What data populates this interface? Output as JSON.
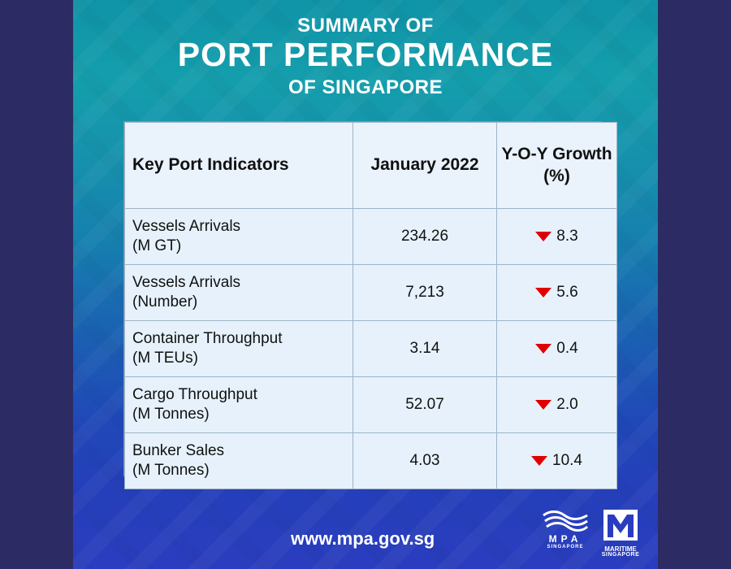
{
  "header": {
    "title_top": "SUMMARY OF",
    "title_main": "PORT PERFORMANCE",
    "title_bottom": "OF SINGAPORE"
  },
  "table": {
    "headers": [
      "Key Port Indicators",
      "January 2022",
      "Y-O-Y Growth (%)"
    ],
    "rows": [
      {
        "indicator_main": "Vessels Arrivals",
        "indicator_unit": "(M GT)",
        "value": "234.26",
        "growth": "8.3",
        "direction": "down"
      },
      {
        "indicator_main": "Vessels Arrivals",
        "indicator_unit": "(Number)",
        "value": "7,213",
        "growth": "5.6",
        "direction": "down"
      },
      {
        "indicator_main": "Container Throughput",
        "indicator_unit": "(M TEUs)",
        "value": "3.14",
        "growth": "0.4",
        "direction": "down"
      },
      {
        "indicator_main": "Cargo Throughput",
        "indicator_unit": "(M Tonnes)",
        "value": "52.07",
        "growth": "2.0",
        "direction": "down"
      },
      {
        "indicator_main": "Bunker Sales",
        "indicator_unit": "(M Tonnes)",
        "value": "4.03",
        "growth": "10.4",
        "direction": "down"
      }
    ]
  },
  "footer": {
    "url": "www.mpa.gov.sg"
  },
  "logos": {
    "mpa": {
      "name": "MPA",
      "country": "SINGAPORE"
    },
    "maritime": {
      "name": "MARITIME",
      "country": "SINGAPORE"
    }
  },
  "colors": {
    "background_outer": "#2d2b63",
    "gradient_top": "#0f93a7",
    "gradient_bottom": "#2a3dbf",
    "table_border": "#9db4c8",
    "arrow_red": "#e00000",
    "text_white": "#ffffff"
  },
  "icons": {
    "growth_direction": "down-triangle-icon",
    "mpa_logo": "wave-logo-icon",
    "maritime_logo": "m-logo-icon"
  }
}
